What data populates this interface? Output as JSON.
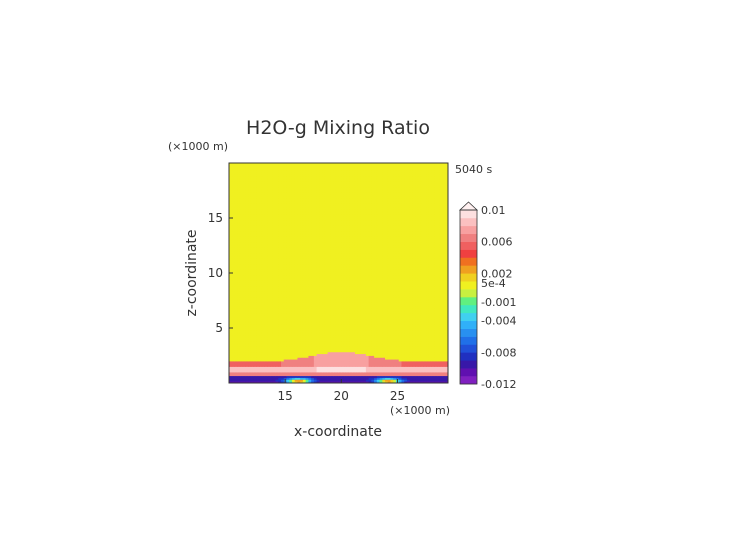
{
  "chart_data": {
    "type": "heatmap",
    "title": "H2O-g Mixing Ratio",
    "time_label": "5040 s",
    "xlabel": "x-coordinate",
    "ylabel": "z-coordinate",
    "x_unit": "(×1000 m)",
    "y_unit": "(×1000 m)",
    "xlim": [
      10,
      29.5
    ],
    "ylim": [
      0,
      20
    ],
    "x_ticks": [
      15,
      20,
      25
    ],
    "y_ticks": [
      5,
      10,
      15
    ],
    "colorbar": {
      "vmin": -0.012,
      "vmax": 0.01,
      "extend": "max",
      "levels": [
        -0.012,
        -0.011,
        -0.01,
        -0.009,
        -0.008,
        -0.007,
        -0.006,
        -0.005,
        -0.004,
        -0.003,
        -0.002,
        -0.001,
        0.0005,
        0.001,
        0.002,
        0.003,
        0.004,
        0.005,
        0.006,
        0.007,
        0.008,
        0.009,
        0.01
      ],
      "tick_labels": [
        "0.01",
        "0.006",
        "0.002",
        "5e-4",
        "-0.001",
        "-0.004",
        "-0.008",
        "-0.012"
      ],
      "tick_values": [
        0.01,
        0.006,
        0.002,
        0.0005,
        -0.001,
        -0.004,
        -0.008,
        -0.012
      ],
      "colors": [
        "#8020c0",
        "#6010b0",
        "#3818a8",
        "#2030c0",
        "#2050d8",
        "#2070e8",
        "#2890f0",
        "#30b0f8",
        "#40d0f0",
        "#40e8c0",
        "#60f080",
        "#c8f040",
        "#f0f020",
        "#f0d020",
        "#f0a020",
        "#f07020",
        "#f04040",
        "#f06060",
        "#f08080",
        "#f8a0a0",
        "#fbc0c0",
        "#fde0e0"
      ]
    },
    "field_description_values": {
      "background_mixing_ratio": 0.0007,
      "moist_layer_peak": 0.009,
      "surface_minimum": -0.012
    }
  }
}
